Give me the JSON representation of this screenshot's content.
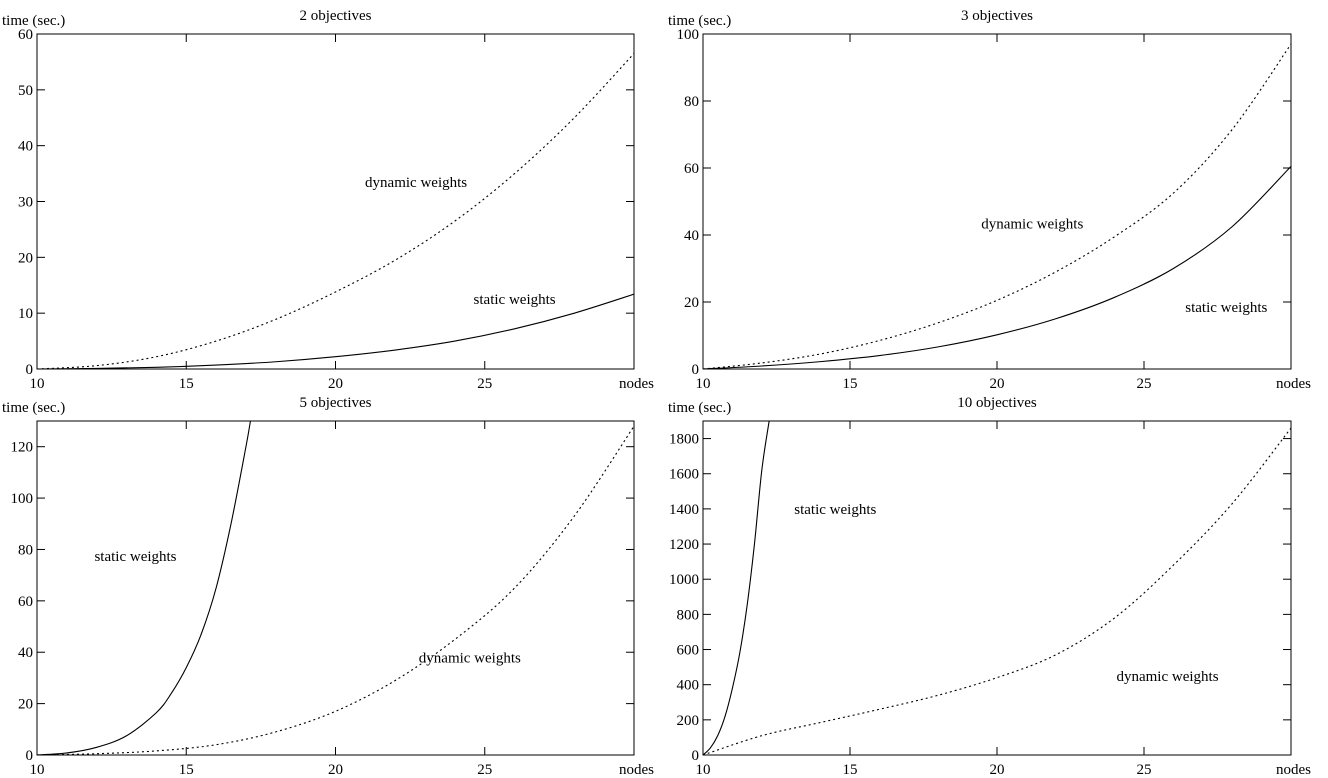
{
  "chart_data": [
    {
      "type": "line",
      "title": "2 objectives",
      "ylabel": "time (sec.)",
      "xlabel": "nodes",
      "xlim": [
        10,
        30
      ],
      "ylim": [
        0,
        60
      ],
      "x_ticks": [
        10,
        15,
        20,
        25
      ],
      "y_ticks": [
        0,
        10,
        20,
        30,
        40,
        50,
        60
      ],
      "grid": false,
      "legend": "none",
      "series": [
        {
          "name": "static weights",
          "style": "solid",
          "x": [
            10,
            12,
            14,
            16,
            18,
            20,
            22,
            24,
            26,
            28,
            30
          ],
          "y": [
            0.0,
            0.1,
            0.3,
            0.7,
            1.3,
            2.2,
            3.4,
            5.0,
            7.2,
            10.0,
            13.4
          ]
        },
        {
          "name": "dynamic weights",
          "style": "dotted",
          "x": [
            10,
            12,
            14,
            16,
            18,
            20,
            22,
            24,
            26,
            28,
            30
          ],
          "y": [
            0.0,
            0.6,
            2.2,
            5.0,
            8.9,
            13.8,
            19.5,
            26.5,
            35.0,
            45.0,
            56.5
          ]
        }
      ]
    },
    {
      "type": "line",
      "title": "3 objectives",
      "ylabel": "time (sec.)",
      "xlabel": "nodes",
      "xlim": [
        10,
        30
      ],
      "ylim": [
        0,
        100
      ],
      "x_ticks": [
        10,
        15,
        20,
        25
      ],
      "y_ticks": [
        0,
        20,
        40,
        60,
        80,
        100
      ],
      "grid": false,
      "legend": "none",
      "series": [
        {
          "name": "static weights",
          "style": "solid",
          "x": [
            10,
            12,
            14,
            16,
            18,
            20,
            22,
            24,
            26,
            28,
            30
          ],
          "y": [
            0.0,
            0.9,
            2.2,
            4.0,
            6.6,
            10.2,
            15.0,
            21.4,
            30.0,
            42.5,
            60.5
          ]
        },
        {
          "name": "dynamic weights",
          "style": "dotted",
          "x": [
            10,
            12,
            14,
            16,
            18,
            20,
            22,
            24,
            26,
            28,
            30
          ],
          "y": [
            0.0,
            1.8,
            4.5,
            8.5,
            13.8,
            20.5,
            29.0,
            39.5,
            52.5,
            71.5,
            97.0
          ]
        }
      ]
    },
    {
      "type": "line",
      "title": "5 objectives",
      "ylabel": "time (sec.)",
      "xlabel": "nodes",
      "xlim": [
        10,
        30
      ],
      "ylim": [
        0,
        130
      ],
      "x_ticks": [
        10,
        15,
        20,
        25
      ],
      "y_ticks": [
        0,
        20,
        40,
        60,
        80,
        100,
        120
      ],
      "grid": false,
      "legend": "none",
      "series": [
        {
          "name": "static weights",
          "style": "solid",
          "x": [
            10,
            11,
            12,
            13,
            14,
            14.5,
            15,
            15.5,
            16,
            16.5,
            17,
            17.15
          ],
          "y": [
            0.0,
            0.8,
            3.0,
            7.5,
            16.5,
            24.0,
            34.0,
            47.0,
            65.0,
            90.0,
            120.0,
            130.0
          ]
        },
        {
          "name": "dynamic weights",
          "style": "dotted",
          "x": [
            10,
            12,
            14,
            16,
            18,
            20,
            22,
            24,
            26,
            28,
            30
          ],
          "y": [
            0.0,
            0.5,
            1.6,
            4.0,
            9.0,
            17.0,
            29.0,
            45.0,
            65.0,
            93.0,
            128.0
          ]
        }
      ]
    },
    {
      "type": "line",
      "title": "10 objectives",
      "ylabel": "time (sec.)",
      "xlabel": "nodes",
      "xlim": [
        10,
        30
      ],
      "ylim": [
        0,
        1900
      ],
      "x_ticks": [
        10,
        15,
        20,
        25
      ],
      "y_ticks": [
        0,
        200,
        400,
        600,
        800,
        1000,
        1200,
        1400,
        1600,
        1800
      ],
      "grid": false,
      "legend": "none",
      "series": [
        {
          "name": "static weights",
          "style": "solid",
          "x": [
            10,
            10.25,
            10.5,
            10.75,
            11,
            11.25,
            11.5,
            11.75,
            12,
            12.25
          ],
          "y": [
            0,
            40,
            110,
            220,
            380,
            580,
            850,
            1200,
            1620,
            1900
          ]
        },
        {
          "name": "dynamic weights",
          "style": "dotted",
          "x": [
            10,
            12,
            14,
            16,
            18,
            20,
            22,
            24,
            26,
            28,
            30
          ],
          "y": [
            0,
            110,
            185,
            260,
            340,
            440,
            570,
            780,
            1080,
            1430,
            1860
          ]
        }
      ]
    }
  ],
  "labels": [
    [
      {
        "text": "dynamic weights",
        "x": 22.7,
        "y": 33.5
      },
      {
        "text": "static weights",
        "x": 26.0,
        "y": 12.5
      }
    ],
    [
      {
        "text": "dynamic weights",
        "x": 21.2,
        "y": 43.5
      },
      {
        "text": "static weights",
        "x": 27.8,
        "y": 18.5
      }
    ],
    [
      {
        "text": "static weights",
        "x": 13.3,
        "y": 77.5
      },
      {
        "text": "dynamic weights",
        "x": 24.5,
        "y": 38.0
      }
    ],
    [
      {
        "text": "static weights",
        "x": 14.5,
        "y": 1400
      },
      {
        "text": "dynamic weights",
        "x": 25.8,
        "y": 450
      }
    ]
  ]
}
